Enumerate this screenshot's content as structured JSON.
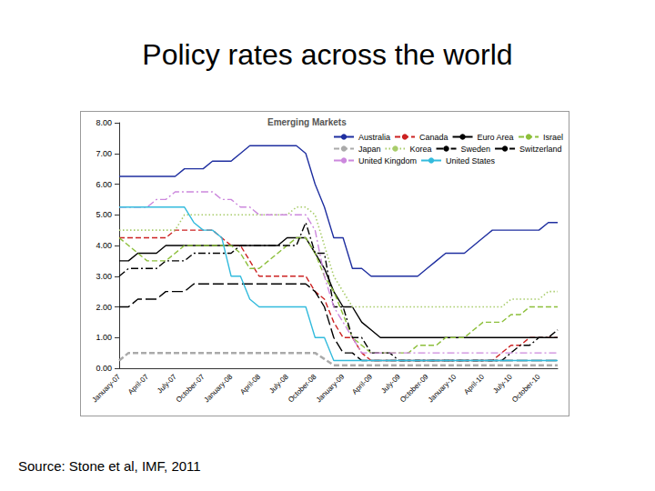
{
  "slide": {
    "title": "Policy rates across the world",
    "source": "Source:  Stone et al, IMF, 2011"
  },
  "chart_data": {
    "type": "line",
    "title": "Emerging Markets",
    "categories": [
      "January-07",
      null,
      null,
      "April-07",
      null,
      null,
      "July-07",
      null,
      null,
      "October-07",
      null,
      null,
      "January-08",
      null,
      null,
      "April-08",
      null,
      null,
      "July-08",
      null,
      null,
      "October-08",
      null,
      null,
      "January-09",
      null,
      null,
      "April-09",
      null,
      null,
      "July-09",
      null,
      null,
      "October-09",
      null,
      null,
      "January-10",
      null,
      null,
      "April-10",
      null,
      null,
      "July-10",
      null,
      null,
      "October-10",
      null,
      null
    ],
    "series": [
      {
        "name": "Australia",
        "color": "#1f2fa0",
        "line_style": "solid",
        "values": [
          6.25,
          6.25,
          6.25,
          6.25,
          6.25,
          6.25,
          6.25,
          6.5,
          6.5,
          6.5,
          6.75,
          6.75,
          6.75,
          7.0,
          7.25,
          7.25,
          7.25,
          7.25,
          7.25,
          7.25,
          7.0,
          6.0,
          5.25,
          4.25,
          4.25,
          3.25,
          3.25,
          3.0,
          3.0,
          3.0,
          3.0,
          3.0,
          3.0,
          3.25,
          3.5,
          3.75,
          3.75,
          3.75,
          4.0,
          4.25,
          4.5,
          4.5,
          4.5,
          4.5,
          4.5,
          4.5,
          4.75,
          4.75
        ]
      },
      {
        "name": "Canada",
        "color": "#cc2222",
        "line_style": "dashed",
        "values": [
          4.25,
          4.25,
          4.25,
          4.25,
          4.25,
          4.25,
          4.5,
          4.5,
          4.5,
          4.5,
          4.5,
          4.25,
          4.0,
          4.0,
          3.5,
          3.0,
          3.0,
          3.0,
          3.0,
          3.0,
          3.0,
          2.5,
          2.25,
          1.5,
          1.0,
          1.0,
          0.5,
          0.25,
          0.25,
          0.25,
          0.25,
          0.25,
          0.25,
          0.25,
          0.25,
          0.25,
          0.25,
          0.25,
          0.25,
          0.25,
          0.25,
          0.5,
          0.75,
          0.75,
          1.0,
          1.0,
          1.0,
          1.0
        ]
      },
      {
        "name": "Euro Area",
        "color": "#000000",
        "line_style": "solid",
        "values": [
          3.5,
          3.5,
          3.75,
          3.75,
          3.75,
          4.0,
          4.0,
          4.0,
          4.0,
          4.0,
          4.0,
          4.0,
          4.0,
          4.0,
          4.0,
          4.0,
          4.0,
          4.0,
          4.25,
          4.25,
          4.25,
          3.75,
          3.25,
          2.5,
          2.0,
          2.0,
          1.5,
          1.25,
          1.0,
          1.0,
          1.0,
          1.0,
          1.0,
          1.0,
          1.0,
          1.0,
          1.0,
          1.0,
          1.0,
          1.0,
          1.0,
          1.0,
          1.0,
          1.0,
          1.0,
          1.0,
          1.0,
          1.0
        ]
      },
      {
        "name": "Israel",
        "color": "#8cbf3a",
        "line_style": "dashed",
        "values": [
          4.25,
          4.0,
          3.75,
          3.5,
          3.5,
          3.5,
          3.75,
          4.0,
          4.0,
          4.0,
          4.0,
          4.0,
          4.0,
          3.75,
          3.25,
          3.25,
          3.5,
          3.75,
          4.0,
          4.25,
          4.25,
          3.75,
          3.0,
          2.5,
          1.75,
          1.0,
          0.75,
          0.5,
          0.5,
          0.5,
          0.5,
          0.5,
          0.75,
          0.75,
          0.75,
          1.0,
          1.0,
          1.0,
          1.25,
          1.5,
          1.5,
          1.5,
          1.75,
          1.75,
          2.0,
          2.0,
          2.0,
          2.0
        ]
      },
      {
        "name": "Japan",
        "color": "#aaaaaa",
        "line_style": "dashed",
        "values": [
          0.25,
          0.5,
          0.5,
          0.5,
          0.5,
          0.5,
          0.5,
          0.5,
          0.5,
          0.5,
          0.5,
          0.5,
          0.5,
          0.5,
          0.5,
          0.5,
          0.5,
          0.5,
          0.5,
          0.5,
          0.5,
          0.5,
          0.3,
          0.1,
          0.1,
          0.1,
          0.1,
          0.1,
          0.1,
          0.1,
          0.1,
          0.1,
          0.1,
          0.1,
          0.1,
          0.1,
          0.1,
          0.1,
          0.1,
          0.1,
          0.1,
          0.1,
          0.1,
          0.1,
          0.1,
          0.1,
          0.1,
          0.1
        ]
      },
      {
        "name": "Korea",
        "color": "#a8cc6a",
        "line_style": "dotted",
        "values": [
          4.5,
          4.5,
          4.5,
          4.5,
          4.5,
          4.5,
          4.5,
          5.0,
          5.0,
          5.0,
          5.0,
          5.0,
          5.0,
          5.0,
          5.0,
          5.0,
          5.0,
          5.0,
          5.0,
          5.25,
          5.25,
          5.0,
          4.0,
          3.0,
          2.5,
          2.0,
          2.0,
          2.0,
          2.0,
          2.0,
          2.0,
          2.0,
          2.0,
          2.0,
          2.0,
          2.0,
          2.0,
          2.0,
          2.0,
          2.0,
          2.0,
          2.0,
          2.25,
          2.25,
          2.25,
          2.25,
          2.5,
          2.5
        ]
      },
      {
        "name": "Sweden",
        "color": "#000000",
        "line_style": "dashdot",
        "values": [
          3.0,
          3.25,
          3.25,
          3.25,
          3.25,
          3.5,
          3.5,
          3.5,
          3.75,
          3.75,
          3.75,
          3.75,
          3.75,
          4.0,
          4.0,
          4.0,
          4.0,
          4.0,
          4.0,
          4.0,
          4.75,
          3.75,
          3.75,
          2.0,
          2.0,
          1.0,
          1.0,
          0.5,
          0.5,
          0.5,
          0.25,
          0.25,
          0.25,
          0.25,
          0.25,
          0.25,
          0.25,
          0.25,
          0.25,
          0.25,
          0.25,
          0.25,
          0.5,
          0.75,
          0.75,
          1.0,
          1.0,
          1.25
        ]
      },
      {
        "name": "Switzerland",
        "color": "#000000",
        "line_style": "longdash",
        "values": [
          2.0,
          2.0,
          2.25,
          2.25,
          2.25,
          2.5,
          2.5,
          2.5,
          2.75,
          2.75,
          2.75,
          2.75,
          2.75,
          2.75,
          2.75,
          2.75,
          2.75,
          2.75,
          2.75,
          2.75,
          2.75,
          2.5,
          2.0,
          1.0,
          0.5,
          0.5,
          0.25,
          0.25,
          0.25,
          0.25,
          0.25,
          0.25,
          0.25,
          0.25,
          0.25,
          0.25,
          0.25,
          0.25,
          0.25,
          0.25,
          0.25,
          0.25,
          0.25,
          0.25,
          0.25,
          0.25,
          0.25,
          0.25
        ]
      },
      {
        "name": "United Kingdom",
        "color": "#cc88dd",
        "line_style": "dashdot",
        "values": [
          5.25,
          5.25,
          5.25,
          5.25,
          5.5,
          5.5,
          5.75,
          5.75,
          5.75,
          5.75,
          5.75,
          5.5,
          5.5,
          5.25,
          5.25,
          5.0,
          5.0,
          5.0,
          5.0,
          5.0,
          5.0,
          4.5,
          3.0,
          2.0,
          1.5,
          1.0,
          0.5,
          0.5,
          0.5,
          0.5,
          0.5,
          0.5,
          0.5,
          0.5,
          0.5,
          0.5,
          0.5,
          0.5,
          0.5,
          0.5,
          0.5,
          0.5,
          0.5,
          0.5,
          0.5,
          0.5,
          0.5,
          0.5
        ]
      },
      {
        "name": "United States",
        "color": "#33bbdd",
        "line_style": "solid",
        "values": [
          5.25,
          5.25,
          5.25,
          5.25,
          5.25,
          5.25,
          5.25,
          5.25,
          4.75,
          4.5,
          4.5,
          4.25,
          3.0,
          3.0,
          2.25,
          2.0,
          2.0,
          2.0,
          2.0,
          2.0,
          2.0,
          1.0,
          1.0,
          0.25,
          0.25,
          0.25,
          0.25,
          0.25,
          0.25,
          0.25,
          0.25,
          0.25,
          0.25,
          0.25,
          0.25,
          0.25,
          0.25,
          0.25,
          0.25,
          0.25,
          0.25,
          0.25,
          0.25,
          0.25,
          0.25,
          0.25,
          0.25,
          0.25
        ]
      }
    ],
    "ylim": [
      0,
      8
    ],
    "yticks": [
      {
        "value": 0,
        "label": "0.00"
      },
      {
        "value": 1,
        "label": "1.00"
      },
      {
        "value": 2,
        "label": "2.00"
      },
      {
        "value": 3,
        "label": "3.00"
      },
      {
        "value": 4,
        "label": "4.00"
      },
      {
        "value": 5,
        "label": "5.00"
      },
      {
        "value": 6,
        "label": "6.00"
      },
      {
        "value": 7,
        "label": "7.00"
      },
      {
        "value": 8,
        "label": "8.00"
      }
    ],
    "grid": false,
    "legend": "upper right"
  }
}
